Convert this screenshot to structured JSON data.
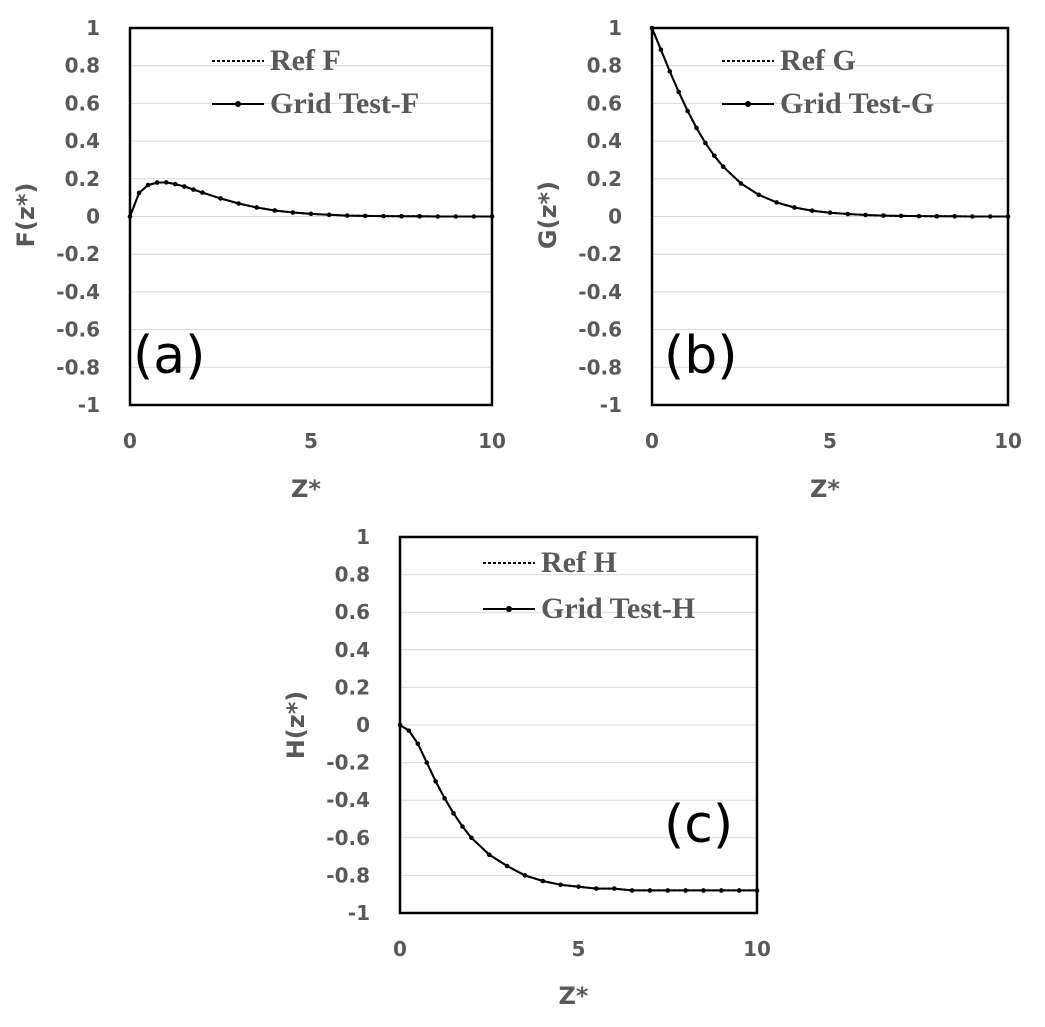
{
  "chart_data": [
    {
      "type": "line",
      "panel_label": "(a)",
      "xlabel": "Z*",
      "ylabel": "F(z*)",
      "xlim": [
        0,
        10
      ],
      "ylim": [
        -1,
        1
      ],
      "xticks": [
        "0",
        "5",
        "10"
      ],
      "yticks": [
        "1",
        "0.8",
        "0.6",
        "0.4",
        "0.2",
        "0",
        "-0.2",
        "-0.4",
        "-0.6",
        "-0.8",
        "-1"
      ],
      "grid": "horizontal",
      "legend_position": "top-right",
      "series": [
        {
          "name": "Ref F",
          "style": "dashed",
          "x": [
            0,
            0.25,
            0.5,
            0.75,
            1,
            1.25,
            1.5,
            1.75,
            2,
            2.5,
            3,
            3.5,
            4,
            4.5,
            5,
            5.5,
            6,
            6.5,
            7,
            7.5,
            8,
            8.5,
            9,
            9.5,
            10
          ],
          "y": [
            0,
            0.125,
            0.167,
            0.18,
            0.181,
            0.172,
            0.159,
            0.143,
            0.127,
            0.096,
            0.069,
            0.048,
            0.032,
            0.021,
            0.014,
            0.009,
            0.005,
            0.003,
            0.002,
            0.001,
            0.001,
            0,
            0,
            0,
            0
          ]
        },
        {
          "name": "Grid Test-F",
          "style": "solid-marker",
          "x": [
            0,
            0.25,
            0.5,
            0.75,
            1,
            1.25,
            1.5,
            1.75,
            2,
            2.5,
            3,
            3.5,
            4,
            4.5,
            5,
            5.5,
            6,
            6.5,
            7,
            7.5,
            8,
            8.5,
            9,
            9.5,
            10
          ],
          "y": [
            0,
            0.125,
            0.167,
            0.18,
            0.181,
            0.172,
            0.159,
            0.143,
            0.127,
            0.096,
            0.069,
            0.048,
            0.032,
            0.021,
            0.014,
            0.009,
            0.005,
            0.003,
            0.002,
            0.001,
            0.001,
            0,
            0,
            0,
            0
          ]
        }
      ]
    },
    {
      "type": "line",
      "panel_label": "(b)",
      "xlabel": "Z*",
      "ylabel": "G(z*)",
      "xlim": [
        0,
        10
      ],
      "ylim": [
        -1,
        1
      ],
      "xticks": [
        "0",
        "5",
        "10"
      ],
      "yticks": [
        "1",
        "0.8",
        "0.6",
        "0.4",
        "0.2",
        "0",
        "-0.2",
        "-0.4",
        "-0.6",
        "-0.8",
        "-1"
      ],
      "grid": "horizontal",
      "legend_position": "top-right",
      "series": [
        {
          "name": "Ref G",
          "style": "dashed",
          "x": [
            0,
            0.25,
            0.5,
            0.75,
            1,
            1.25,
            1.5,
            1.75,
            2,
            2.5,
            3,
            3.5,
            4,
            4.5,
            5,
            5.5,
            6,
            6.5,
            7,
            7.5,
            8,
            8.5,
            9,
            9.5,
            10
          ],
          "y": [
            1,
            0.885,
            0.77,
            0.661,
            0.56,
            0.47,
            0.39,
            0.322,
            0.264,
            0.175,
            0.115,
            0.075,
            0.048,
            0.031,
            0.02,
            0.013,
            0.008,
            0.005,
            0.003,
            0.002,
            0.001,
            0.001,
            0,
            0,
            0
          ]
        },
        {
          "name": "Grid Test-G",
          "style": "solid-marker",
          "x": [
            0,
            0.25,
            0.5,
            0.75,
            1,
            1.25,
            1.5,
            1.75,
            2,
            2.5,
            3,
            3.5,
            4,
            4.5,
            5,
            5.5,
            6,
            6.5,
            7,
            7.5,
            8,
            8.5,
            9,
            9.5,
            10
          ],
          "y": [
            1,
            0.885,
            0.77,
            0.661,
            0.56,
            0.47,
            0.39,
            0.322,
            0.264,
            0.175,
            0.115,
            0.075,
            0.048,
            0.031,
            0.02,
            0.013,
            0.008,
            0.005,
            0.003,
            0.002,
            0.001,
            0.001,
            0,
            0,
            0
          ]
        }
      ]
    },
    {
      "type": "line",
      "panel_label": "(c)",
      "xlabel": "Z*",
      "ylabel": "H(z*)",
      "xlim": [
        0,
        10
      ],
      "ylim": [
        -1,
        1
      ],
      "xticks": [
        "0",
        "5",
        "10"
      ],
      "yticks": [
        "1",
        "0.8",
        "0.6",
        "0.4",
        "0.2",
        "0",
        "-0.2",
        "-0.4",
        "-0.6",
        "-0.8",
        "-1"
      ],
      "grid": "horizontal",
      "legend_position": "top-right",
      "series": [
        {
          "name": "Ref H",
          "style": "dashed",
          "x": [
            0,
            0.25,
            0.5,
            0.75,
            1,
            1.25,
            1.5,
            1.75,
            2,
            2.5,
            3,
            3.5,
            4,
            4.5,
            5,
            5.5,
            6,
            6.5,
            7,
            7.5,
            8,
            8.5,
            9,
            9.5,
            10
          ],
          "y": [
            0,
            -0.03,
            -0.1,
            -0.2,
            -0.3,
            -0.39,
            -0.47,
            -0.54,
            -0.6,
            -0.69,
            -0.75,
            -0.8,
            -0.83,
            -0.85,
            -0.86,
            -0.87,
            -0.87,
            -0.88,
            -0.88,
            -0.88,
            -0.88,
            -0.88,
            -0.88,
            -0.88,
            -0.88
          ]
        },
        {
          "name": "Grid Test-H",
          "style": "solid-marker",
          "x": [
            0,
            0.25,
            0.5,
            0.75,
            1,
            1.25,
            1.5,
            1.75,
            2,
            2.5,
            3,
            3.5,
            4,
            4.5,
            5,
            5.5,
            6,
            6.5,
            7,
            7.5,
            8,
            8.5,
            9,
            9.5,
            10
          ],
          "y": [
            0,
            -0.03,
            -0.1,
            -0.2,
            -0.3,
            -0.39,
            -0.47,
            -0.54,
            -0.6,
            -0.69,
            -0.75,
            -0.8,
            -0.83,
            -0.85,
            -0.86,
            -0.87,
            -0.87,
            -0.88,
            -0.88,
            -0.88,
            -0.88,
            -0.88,
            -0.88,
            -0.88,
            -0.88
          ]
        }
      ]
    }
  ]
}
